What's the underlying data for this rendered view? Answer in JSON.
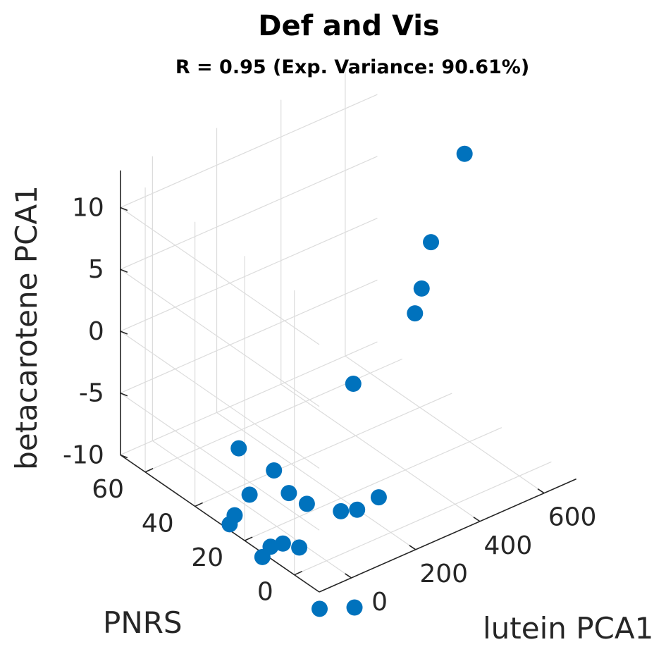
{
  "chart_data": {
    "type": "scatter",
    "title": "Def and Vis",
    "subtitle": "R = 0.95 (Exp. Variance: 90.61%)",
    "xlabel": "lutein PCA1",
    "ylabel": "PNRS",
    "zlabel": "betacarotene PCA1",
    "x_ticks": [
      "0",
      "200",
      "400",
      "600"
    ],
    "y_ticks": [
      "0",
      "20",
      "40",
      "60"
    ],
    "z_ticks": [
      "-10",
      "-5",
      "0",
      "5",
      "10"
    ],
    "xlim": [
      -100,
      700
    ],
    "ylim": [
      -10,
      70
    ],
    "zlim": [
      -10,
      13
    ],
    "grid": true,
    "marker_color": "#0072BD",
    "points": [
      {
        "x": 600,
        "y": 22,
        "z": 13
      },
      {
        "x": 480,
        "y": 20,
        "z": 7.5
      },
      {
        "x": 505,
        "y": 27,
        "z": 2.5
      },
      {
        "x": 492,
        "y": 28,
        "z": 0.5
      },
      {
        "x": 300,
        "y": 28,
        "z": -3
      },
      {
        "x": 240,
        "y": 10,
        "z": -9
      },
      {
        "x": 75,
        "y": 45,
        "z": -8
      },
      {
        "x": 115,
        "y": 36,
        "z": -9
      },
      {
        "x": 115,
        "y": 30,
        "z": -10
      },
      {
        "x": 140,
        "y": 26,
        "z": -10.6
      },
      {
        "x": 215,
        "y": 22,
        "z": -11.5
      },
      {
        "x": 250,
        "y": 20,
        "z": -11.5
      },
      {
        "x": 70,
        "y": 40,
        "z": -11
      },
      {
        "x": 70,
        "y": 46,
        "z": -13.5
      },
      {
        "x": 70,
        "y": 48,
        "z": -14.5
      },
      {
        "x": 155,
        "y": 31,
        "z": -15
      },
      {
        "x": 135,
        "y": 35,
        "z": -15
      },
      {
        "x": 120,
        "y": 38,
        "z": -15.5
      },
      {
        "x": 110,
        "y": 40,
        "z": -16.5
      },
      {
        "x": 180,
        "y": 12,
        "z": -17.5
      },
      {
        "x": 110,
        "y": 17,
        "z": -17.5
      }
    ]
  }
}
